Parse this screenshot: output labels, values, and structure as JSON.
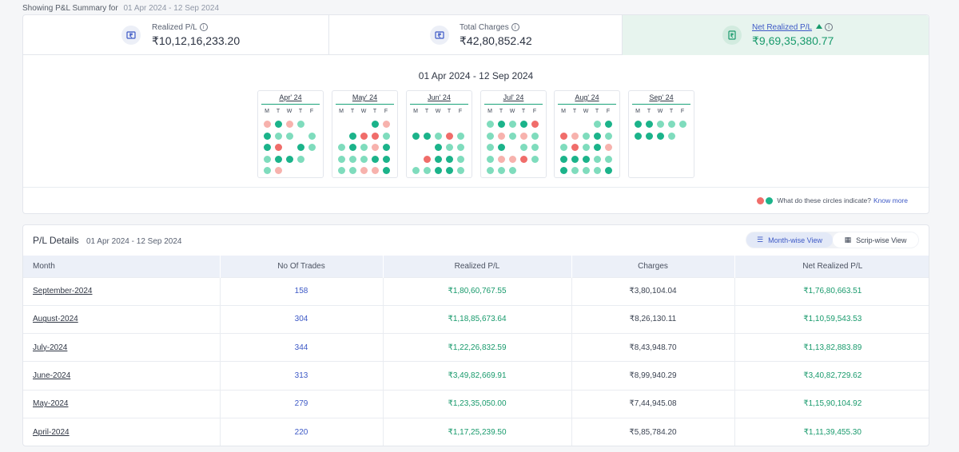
{
  "caption": {
    "label": "Showing P&L Summary for",
    "range": "01 Apr 2024 - 12 Sep 2024"
  },
  "stats": {
    "realized": {
      "label": "Realized P/L",
      "value": "₹10,12,16,233.20",
      "icon": "rupee-box-icon"
    },
    "charges": {
      "label": "Total Charges",
      "value": "₹42,80,852.42",
      "icon": "rupee-box-icon"
    },
    "net": {
      "label": "Net Realized P/L",
      "value": "₹9,69,35,380.77",
      "icon": "rupee-note-icon",
      "trend": "up"
    }
  },
  "calendar": {
    "title": "01 Apr 2024 - 12 Sep 2024",
    "weekdays": [
      "M",
      "T",
      "W",
      "T",
      "F"
    ],
    "months": [
      {
        "name": "Apr' 24",
        "weeks": [
          [
            "p",
            "g",
            "p",
            "l",
            ""
          ],
          [
            "g",
            "l",
            "l",
            "",
            "l"
          ],
          [
            "g",
            "r",
            "",
            "g",
            "l"
          ],
          [
            "l",
            "g",
            "g",
            "l",
            ""
          ],
          [
            "l",
            "p",
            "",
            "",
            ""
          ]
        ]
      },
      {
        "name": "May' 24",
        "weeks": [
          [
            "",
            "",
            "",
            "g",
            "p"
          ],
          [
            "",
            "g",
            "r",
            "r",
            "l"
          ],
          [
            "l",
            "g",
            "l",
            "p",
            "g"
          ],
          [
            "l",
            "l",
            "l",
            "g",
            "g"
          ],
          [
            "l",
            "l",
            "p",
            "p",
            "g"
          ],
          [
            "",
            "",
            "",
            "",
            ""
          ]
        ]
      },
      {
        "name": "Jun' 24",
        "weeks": [
          [
            "",
            "",
            "",
            "",
            ""
          ],
          [
            "g",
            "g",
            "l",
            "r",
            "l"
          ],
          [
            "",
            "",
            "g",
            "l",
            "l"
          ],
          [
            "",
            "r",
            "g",
            "g",
            "l"
          ],
          [
            "l",
            "l",
            "g",
            "g",
            "l"
          ]
        ]
      },
      {
        "name": "Jul' 24",
        "weeks": [
          [
            "l",
            "g",
            "l",
            "g",
            "r"
          ],
          [
            "l",
            "p",
            "l",
            "p",
            "l"
          ],
          [
            "l",
            "g",
            "",
            "l",
            "l"
          ],
          [
            "l",
            "p",
            "p",
            "r",
            "l"
          ],
          [
            "l",
            "l",
            "l",
            "",
            ""
          ]
        ]
      },
      {
        "name": "Aug' 24",
        "weeks": [
          [
            "",
            "",
            "",
            "l",
            "g"
          ],
          [
            "r",
            "p",
            "l",
            "g",
            "l"
          ],
          [
            "l",
            "r",
            "l",
            "g",
            "p"
          ],
          [
            "g",
            "g",
            "g",
            "l",
            "l"
          ],
          [
            "g",
            "l",
            "l",
            "l",
            "g"
          ]
        ]
      },
      {
        "name": "Sep' 24",
        "weeks": [
          [
            "g",
            "g",
            "l",
            "l",
            "l"
          ],
          [
            "g",
            "g",
            "g",
            "l",
            ""
          ]
        ]
      }
    ]
  },
  "legend": {
    "text": "What do these circles indicate?",
    "link": "Know more",
    "colors": [
      "#f06d6a",
      "#1bb38a"
    ]
  },
  "details": {
    "title": "P/L Details",
    "range": "01 Apr 2024 - 12 Sep 2024",
    "views": {
      "month": "Month-wise View",
      "scrip": "Scrip-wise View"
    },
    "columns": [
      "Month",
      "No Of Trades",
      "Realized P/L",
      "Charges",
      "Net Realized P/L"
    ],
    "rows": [
      {
        "month": "September-2024",
        "trades": "158",
        "realized": "₹1,80,60,767.55",
        "charges": "₹3,80,104.04",
        "net": "₹1,76,80,663.51"
      },
      {
        "month": "August-2024",
        "trades": "304",
        "realized": "₹1,18,85,673.64",
        "charges": "₹8,26,130.11",
        "net": "₹1,10,59,543.53"
      },
      {
        "month": "July-2024",
        "trades": "344",
        "realized": "₹1,22,26,832.59",
        "charges": "₹8,43,948.70",
        "net": "₹1,13,82,883.89"
      },
      {
        "month": "June-2024",
        "trades": "313",
        "realized": "₹3,49,82,669.91",
        "charges": "₹8,99,940.29",
        "net": "₹3,40,82,729.62"
      },
      {
        "month": "May-2024",
        "trades": "279",
        "realized": "₹1,23,35,050.00",
        "charges": "₹7,44,945.08",
        "net": "₹1,15,90,104.92"
      },
      {
        "month": "April-2024",
        "trades": "220",
        "realized": "₹1,17,25,239.50",
        "charges": "₹5,85,784.20",
        "net": "₹1,11,39,455.30"
      }
    ]
  }
}
